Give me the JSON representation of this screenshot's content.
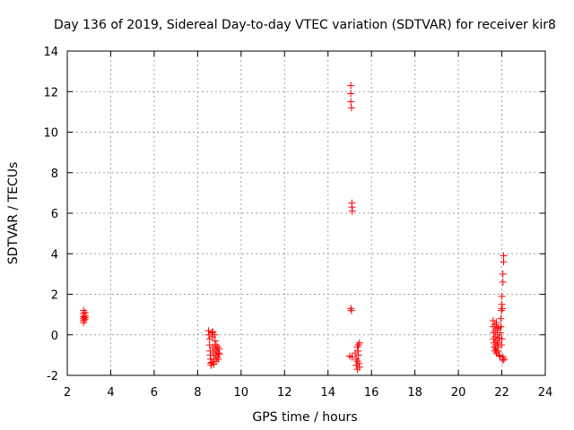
{
  "chart_data": {
    "type": "scatter",
    "title": "Day 136 of 2019, Sidereal Day-to-day VTEC variation (SDTVAR) for receiver kir8",
    "xlabel": "GPS time / hours",
    "ylabel": "SDTVAR / TECUs",
    "xlim": [
      2,
      24
    ],
    "ylim": [
      -2,
      14
    ],
    "xticks": [
      2,
      4,
      6,
      8,
      10,
      12,
      14,
      16,
      18,
      20,
      22,
      24
    ],
    "yticks": [
      -2,
      0,
      2,
      4,
      6,
      8,
      10,
      12,
      14
    ],
    "xtick_labels": [
      "2",
      "4",
      "6",
      "8",
      "10",
      "12",
      "14",
      "16",
      "18",
      "20",
      "22",
      "24"
    ],
    "ytick_labels": [
      "-2",
      "0",
      "2",
      "4",
      "6",
      "8",
      "10",
      "12",
      "14"
    ],
    "grid": true,
    "legend": "none",
    "marker": "plus",
    "series": [
      {
        "name": "SDTVAR",
        "color": "#ff0000",
        "points": [
          [
            2.75,
            1.2
          ],
          [
            2.75,
            1.05
          ],
          [
            2.75,
            0.9
          ],
          [
            2.75,
            0.8
          ],
          [
            2.75,
            0.7
          ],
          [
            2.75,
            0.6
          ],
          [
            2.82,
            1.1
          ],
          [
            2.82,
            0.95
          ],
          [
            2.82,
            0.85
          ],
          [
            2.82,
            0.75
          ],
          [
            8.5,
            0.2
          ],
          [
            8.52,
            0.0
          ],
          [
            8.55,
            -0.2
          ],
          [
            8.55,
            -0.5
          ],
          [
            8.58,
            -0.8
          ],
          [
            8.58,
            -1.0
          ],
          [
            8.6,
            -1.2
          ],
          [
            8.6,
            -1.4
          ],
          [
            8.62,
            -1.5
          ],
          [
            8.65,
            -1.35
          ],
          [
            8.65,
            0.1
          ],
          [
            8.68,
            -0.1
          ],
          [
            8.7,
            -0.6
          ],
          [
            8.72,
            -0.9
          ],
          [
            8.75,
            -1.2
          ],
          [
            8.75,
            -1.45
          ],
          [
            8.78,
            0.0
          ],
          [
            8.8,
            -0.3
          ],
          [
            8.8,
            -0.7
          ],
          [
            8.82,
            -1.0
          ],
          [
            8.85,
            -1.3
          ],
          [
            8.85,
            -0.5
          ],
          [
            8.88,
            -0.8
          ],
          [
            8.9,
            -1.1
          ],
          [
            8.92,
            -0.6
          ],
          [
            8.95,
            -0.9
          ],
          [
            8.95,
            -1.2
          ],
          [
            8.98,
            -0.7
          ],
          [
            9.0,
            -0.95
          ],
          [
            8.7,
            0.15
          ],
          [
            15.05,
            12.3
          ],
          [
            15.05,
            11.9
          ],
          [
            15.05,
            11.5
          ],
          [
            15.08,
            11.2
          ],
          [
            15.1,
            6.5
          ],
          [
            15.1,
            6.3
          ],
          [
            15.12,
            6.1
          ],
          [
            15.05,
            1.3
          ],
          [
            15.08,
            1.2
          ],
          [
            15.0,
            -1.05
          ],
          [
            15.1,
            -1.1
          ],
          [
            15.25,
            -0.9
          ],
          [
            15.3,
            -1.2
          ],
          [
            15.3,
            -1.5
          ],
          [
            15.35,
            -1.7
          ],
          [
            15.35,
            -1.3
          ],
          [
            15.38,
            -0.8
          ],
          [
            15.4,
            -0.5
          ],
          [
            15.4,
            -1.0
          ],
          [
            15.42,
            -1.4
          ],
          [
            15.45,
            -0.4
          ],
          [
            15.45,
            -1.6
          ],
          [
            15.35,
            -0.6
          ],
          [
            21.6,
            0.7
          ],
          [
            21.6,
            0.4
          ],
          [
            21.62,
            0.1
          ],
          [
            21.62,
            -0.2
          ],
          [
            21.65,
            -0.4
          ],
          [
            21.65,
            -0.6
          ],
          [
            21.68,
            -0.8
          ],
          [
            21.68,
            0.5
          ],
          [
            21.7,
            0.2
          ],
          [
            21.7,
            -0.1
          ],
          [
            21.72,
            -0.5
          ],
          [
            21.72,
            -0.7
          ],
          [
            21.75,
            -0.9
          ],
          [
            21.75,
            0.6
          ],
          [
            21.78,
            0.3
          ],
          [
            21.78,
            -0.3
          ],
          [
            21.8,
            -0.6
          ],
          [
            21.8,
            0.0
          ],
          [
            21.82,
            -0.8
          ],
          [
            21.85,
            -0.4
          ],
          [
            21.85,
            0.35
          ],
          [
            21.88,
            -0.15
          ],
          [
            21.88,
            -1.0
          ],
          [
            21.9,
            -1.05
          ],
          [
            21.92,
            0.1
          ],
          [
            21.95,
            0.4
          ],
          [
            21.95,
            0.8
          ],
          [
            21.98,
            1.2
          ],
          [
            22.0,
            1.5
          ],
          [
            22.0,
            1.9
          ],
          [
            22.02,
            1.3
          ],
          [
            22.05,
            -1.1
          ],
          [
            22.05,
            -1.25
          ],
          [
            22.05,
            3.0
          ],
          [
            22.05,
            2.6
          ],
          [
            22.08,
            3.6
          ],
          [
            22.08,
            3.9
          ],
          [
            22.1,
            -1.2
          ],
          [
            22.0,
            -0.2
          ],
          [
            21.98,
            -0.5
          ]
        ]
      }
    ]
  }
}
